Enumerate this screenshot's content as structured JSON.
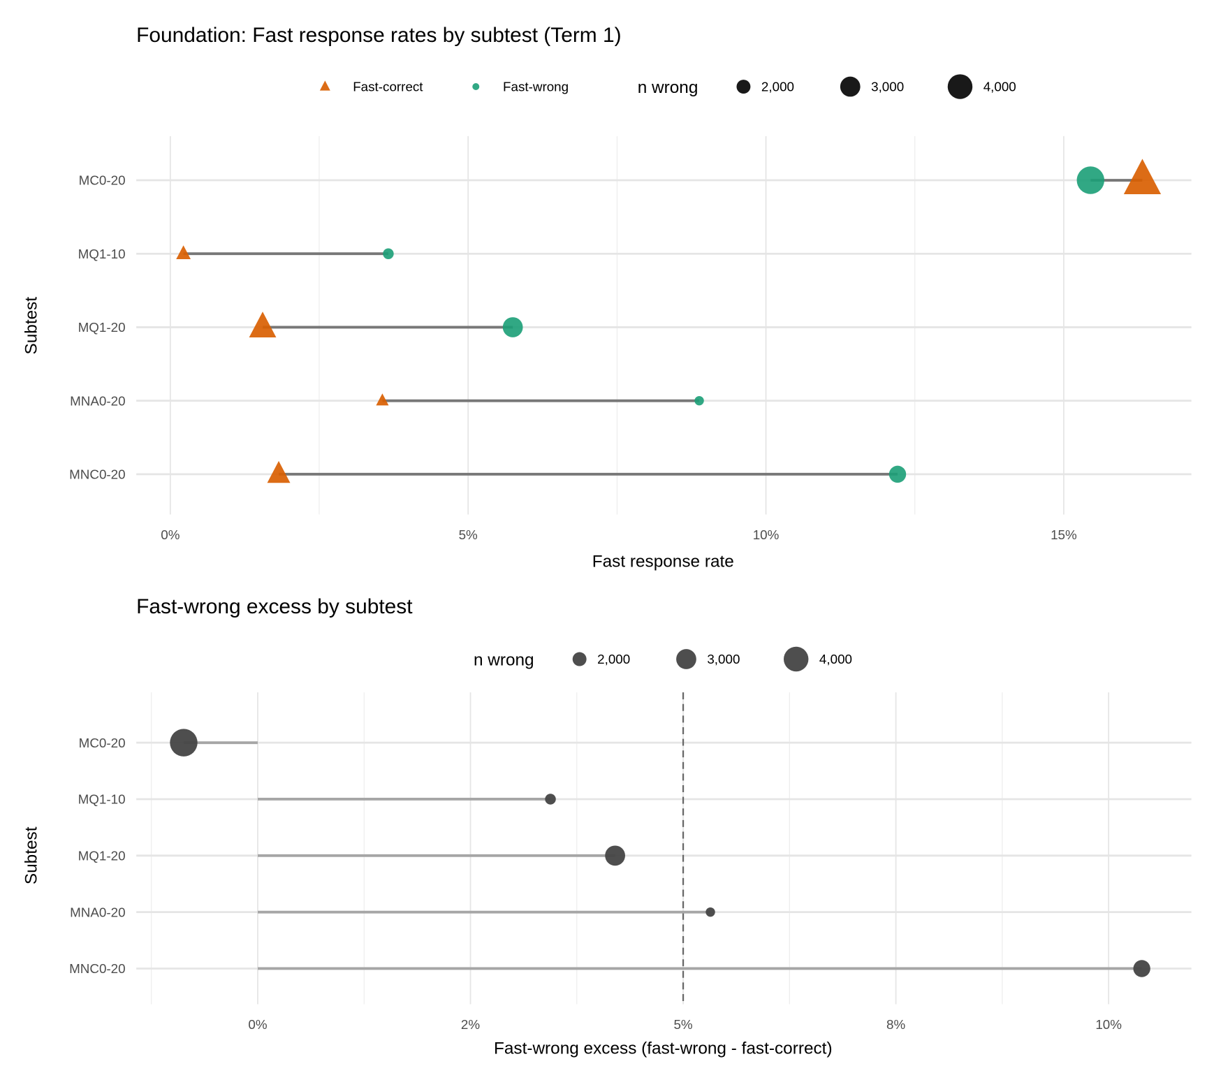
{
  "chart_data": [
    {
      "type": "dumbbell",
      "title": "Foundation: Fast response rates by subtest (Term 1)",
      "xlabel": "Fast response rate",
      "ylabel": "Subtest",
      "xlim": [
        -0.6,
        17.2
      ],
      "xticks": [
        0,
        5,
        10,
        15
      ],
      "xtick_labels": [
        "0%",
        "5%",
        "10%",
        "15%"
      ],
      "categories": [
        "MC0-20",
        "MQ1-10",
        "MQ1-20",
        "MNA0-20",
        "MNC0-20"
      ],
      "series": [
        {
          "name": "Fast-correct",
          "shape": "triangle",
          "color": "#D95F02",
          "values": [
            16.32,
            0.22,
            1.55,
            3.56,
            1.82
          ]
        },
        {
          "name": "Fast-wrong",
          "shape": "circle",
          "color": "#1B9E77",
          "values": [
            15.45,
            3.66,
            5.75,
            8.88,
            12.21
          ]
        }
      ],
      "n_wrong": [
        4700,
        1630,
        3000,
        1490,
        2460
      ],
      "legend": {
        "position": "top",
        "size_title": "n wrong",
        "size_values": [
          2000,
          3000,
          4000
        ],
        "size_labels": [
          "2,000",
          "3,000",
          "4,000"
        ]
      }
    },
    {
      "type": "lollipop",
      "title": "Fast-wrong excess by subtest",
      "xlabel": "Fast-wrong excess (fast-wrong - fast-correct)",
      "ylabel": "Subtest",
      "xlim": [
        -1.4,
        11
      ],
      "xticks": [
        0,
        2.5,
        5,
        7.5,
        10
      ],
      "xtick_labels": [
        "0%",
        "2%",
        "5%",
        "8%",
        "10%"
      ],
      "reference_line": 5,
      "categories": [
        "MC0-20",
        "MQ1-10",
        "MQ1-20",
        "MNA0-20",
        "MNC0-20"
      ],
      "values": [
        -0.87,
        3.44,
        4.2,
        5.32,
        10.39
      ],
      "n_wrong": [
        4700,
        1630,
        3000,
        1490,
        2460
      ],
      "color": "#444444",
      "legend": {
        "position": "top",
        "size_title": "n wrong",
        "size_values": [
          2000,
          3000,
          4000
        ],
        "size_labels": [
          "2,000",
          "3,000",
          "4,000"
        ]
      }
    }
  ]
}
